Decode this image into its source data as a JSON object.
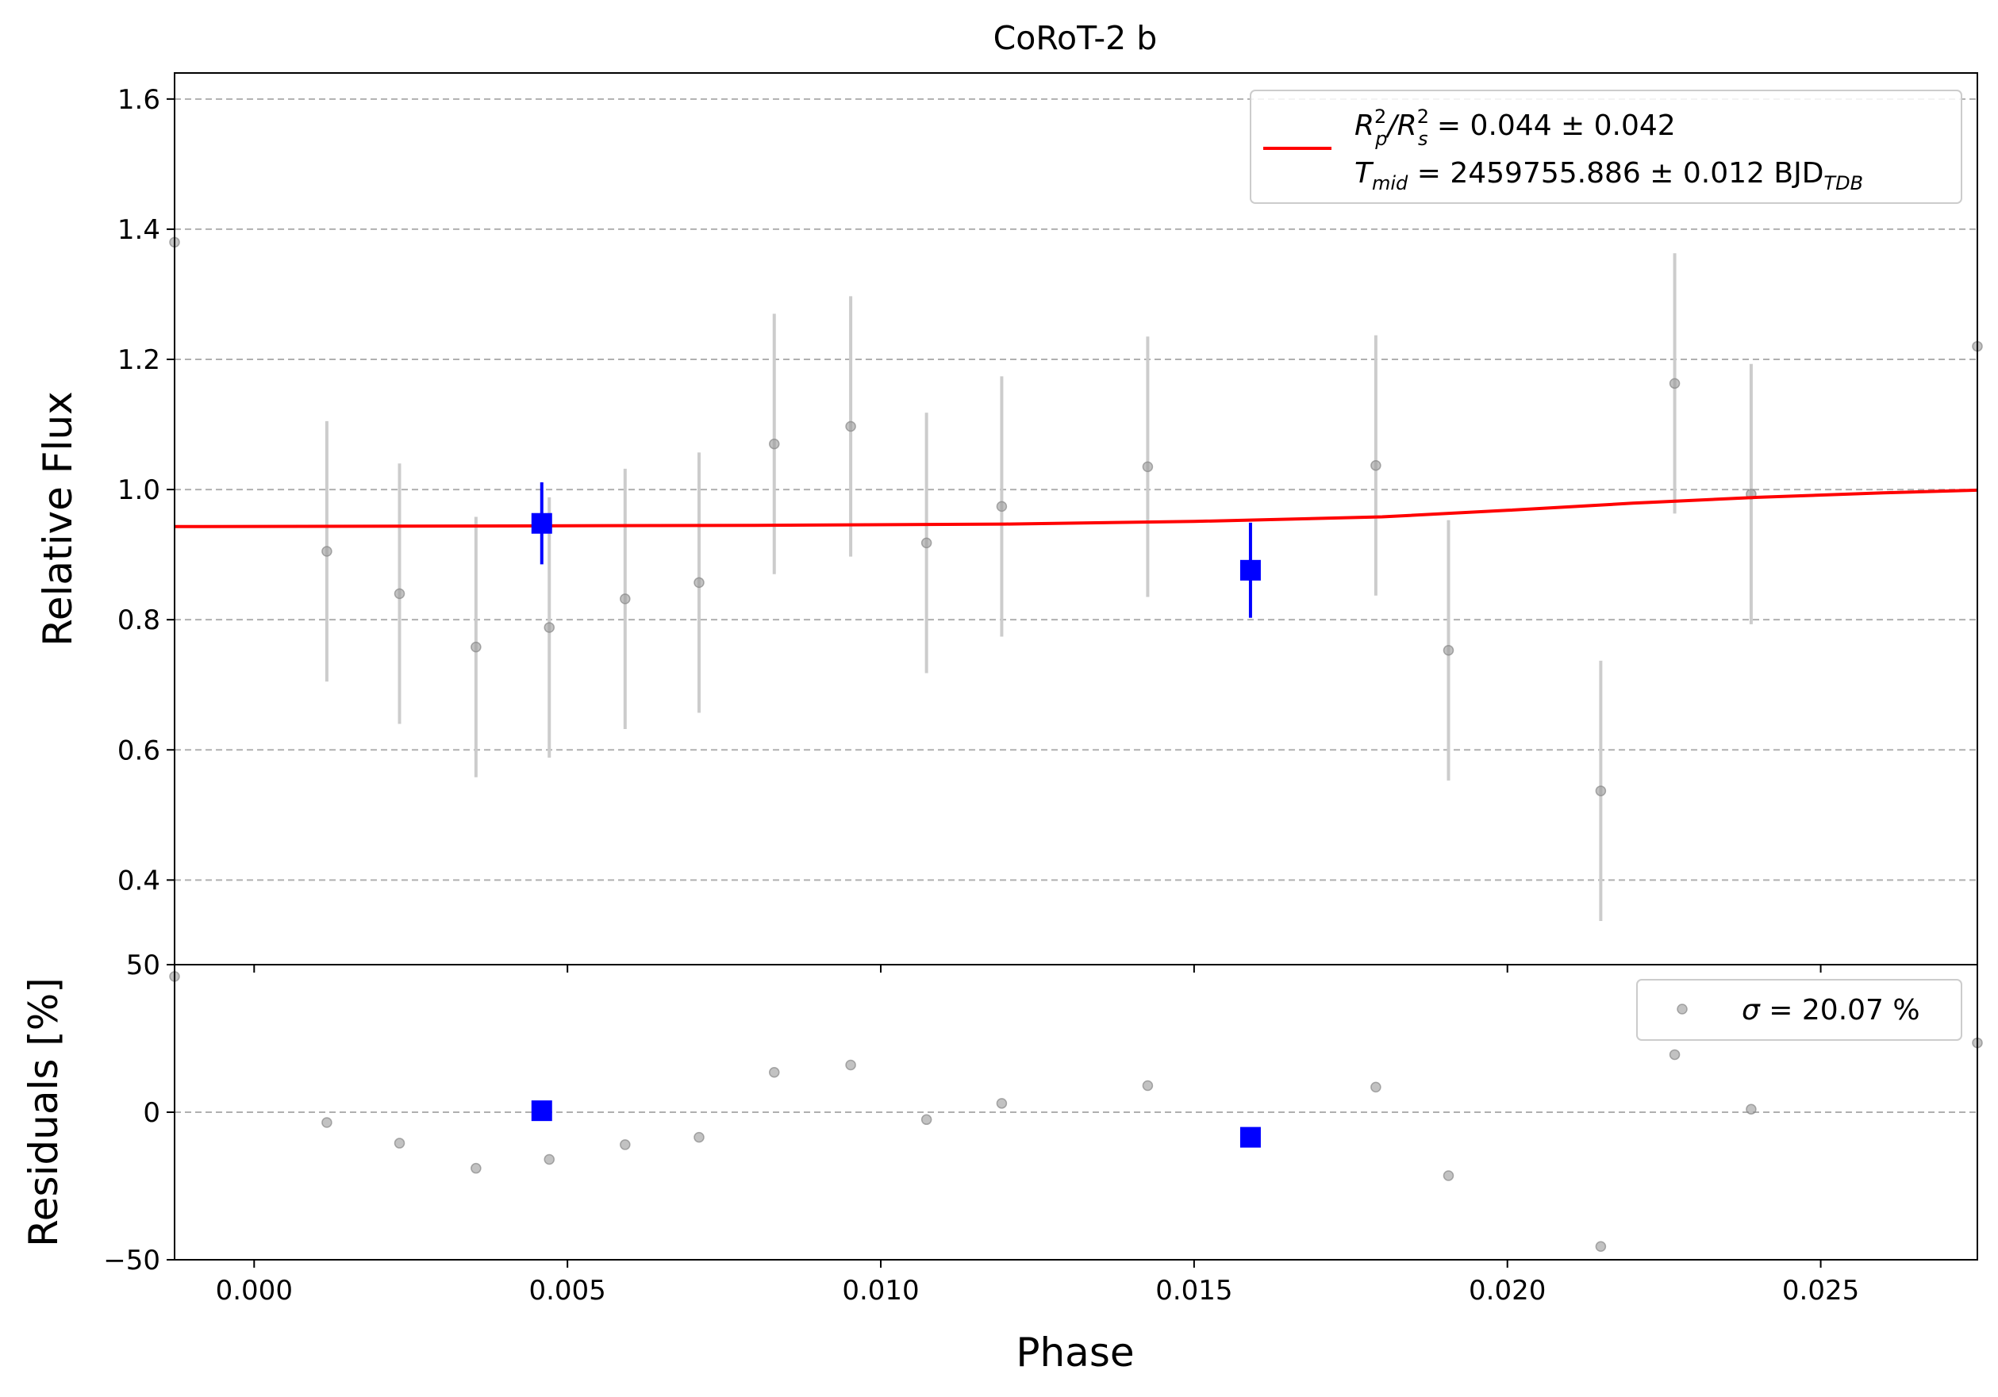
{
  "chart_data": [
    {
      "type": "scatter",
      "title": "CoRoT-2 b",
      "xlabel": "",
      "ylabel": "Relative Flux",
      "xlim": [
        -0.00127,
        0.0275
      ],
      "ylim": [
        0.27,
        1.64
      ],
      "yticks": [
        0.4,
        0.6,
        0.8,
        1.0,
        1.2,
        1.4,
        1.6
      ],
      "ytick_labels": [
        "0.4",
        "0.6",
        "0.8",
        "1.0",
        "1.2",
        "1.4",
        "1.6"
      ],
      "grid": "horizontal dashed",
      "legend": {
        "placement": "top-right",
        "line1": {
          "main": "R",
          "sup1": "2",
          "sub1": "p",
          "slash": "/R",
          "sup2": "2",
          "sub2": "s",
          "value": " = 0.044 ± 0.042"
        },
        "line2": {
          "main": "T",
          "sub": "mid",
          "value": " = 2459755.886 ± 0.012 BJD",
          "unit_sub": "TDB"
        }
      },
      "series": [
        {
          "role": "data",
          "color": "#999999",
          "x": [
            -0.00127,
            0.00116,
            0.00232,
            0.00354,
            0.00471,
            0.00592,
            0.0071,
            0.0083,
            0.00952,
            0.01073,
            0.01193,
            0.01426,
            0.0179,
            0.01906,
            0.02149,
            0.02267,
            0.02389,
            0.0275
          ],
          "y": [
            1.38,
            0.905,
            0.84,
            0.758,
            0.788,
            0.832,
            0.857,
            1.07,
            1.097,
            0.918,
            0.974,
            1.035,
            1.037,
            0.753,
            0.537,
            1.163,
            0.993,
            1.22
          ],
          "yerr": [
            0.2,
            0.2,
            0.2,
            0.2,
            0.2,
            0.2,
            0.2,
            0.2,
            0.2,
            0.2,
            0.2,
            0.2,
            0.2,
            0.2,
            0.2,
            0.2,
            0.2,
            0.2
          ]
        },
        {
          "role": "binned",
          "color": "#0000ff",
          "x": [
            0.00459,
            0.0159
          ],
          "y": [
            0.948,
            0.876
          ],
          "yerr": [
            0.063,
            0.073
          ]
        },
        {
          "role": "model",
          "color": "#ff0000",
          "x": [
            -0.00127,
            0.004,
            0.008,
            0.012,
            0.015,
            0.018,
            0.02,
            0.022,
            0.024,
            0.026,
            0.0275
          ],
          "y": [
            0.943,
            0.944,
            0.945,
            0.947,
            0.951,
            0.958,
            0.968,
            0.979,
            0.988,
            0.995,
            0.999
          ]
        }
      ]
    },
    {
      "type": "scatter",
      "xlabel": "Phase",
      "ylabel": "Residuals [%]",
      "xlim": [
        -0.00127,
        0.0275
      ],
      "ylim": [
        -50,
        50
      ],
      "yticks": [
        -50,
        0,
        50
      ],
      "ytick_labels": [
        "−50",
        "0",
        "50"
      ],
      "xticks": [
        0.0,
        0.005,
        0.01,
        0.015,
        0.02,
        0.025
      ],
      "xtick_labels": [
        "0.000",
        "0.005",
        "0.010",
        "0.015",
        "0.020",
        "0.025"
      ],
      "grid": "horizontal dashed at 0",
      "legend": {
        "placement": "top-right",
        "sigma_symbol": "σ",
        "text": " = 20.07 %"
      },
      "series": [
        {
          "role": "residuals",
          "color": "#999999",
          "x": [
            -0.00127,
            0.00116,
            0.00232,
            0.00354,
            0.00471,
            0.00592,
            0.0071,
            0.0083,
            0.00952,
            0.01073,
            0.01193,
            0.01426,
            0.0179,
            0.01906,
            0.02149,
            0.02267,
            0.02389,
            0.0275
          ],
          "y": [
            46,
            -3.5,
            -10.5,
            -19,
            -16,
            -11,
            -8.5,
            13.5,
            16,
            -2.5,
            3,
            9,
            8.5,
            -21.5,
            -45.5,
            19.5,
            1,
            23.5
          ]
        },
        {
          "role": "binned",
          "color": "#0000ff",
          "x": [
            0.00459,
            0.0159
          ],
          "y": [
            0.5,
            -8.5
          ]
        }
      ]
    }
  ]
}
